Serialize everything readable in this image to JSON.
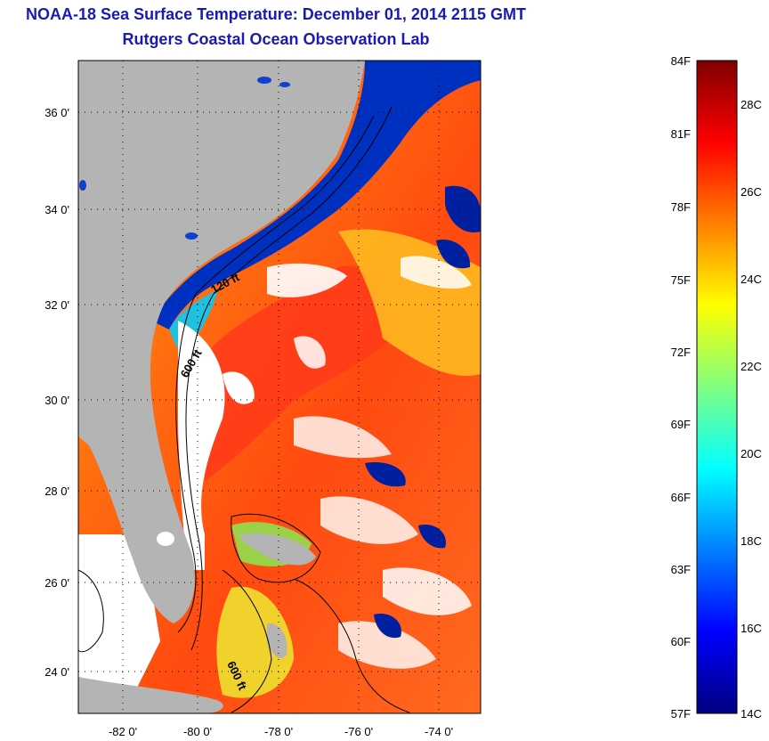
{
  "header": {
    "title": "NOAA-18 Sea Surface Temperature:  December 01, 2014 2115 GMT",
    "subtitle": "Rutgers Coastal Ocean Observation Lab"
  },
  "map": {
    "lat_ticks": [
      "36 0'",
      "34 0'",
      "32 0'",
      "30 0'",
      "28 0'",
      "26 0'",
      "24 0'"
    ],
    "lon_ticks": [
      "-82 0'",
      "-80 0'",
      "-78 0'",
      "-76 0'",
      "-74 0'"
    ],
    "isobath_labels": [
      "120 ft",
      "600 ft",
      "600 ft"
    ],
    "colors": {
      "land": "#b4b4b4",
      "cloud": "#ffffff",
      "frame": "#000000"
    }
  },
  "colorbar": {
    "fahrenheit_ticks": [
      "84F",
      "81F",
      "78F",
      "75F",
      "72F",
      "69F",
      "66F",
      "63F",
      "60F",
      "57F"
    ],
    "celsius_ticks": [
      "28C",
      "26C",
      "24C",
      "22C",
      "20C",
      "18C",
      "16C",
      "14C"
    ],
    "colormap": [
      "#00007f",
      "#0000ff",
      "#007fff",
      "#00ffff",
      "#7fff7f",
      "#ffff00",
      "#ff7f00",
      "#ff0000",
      "#7f0000"
    ]
  }
}
